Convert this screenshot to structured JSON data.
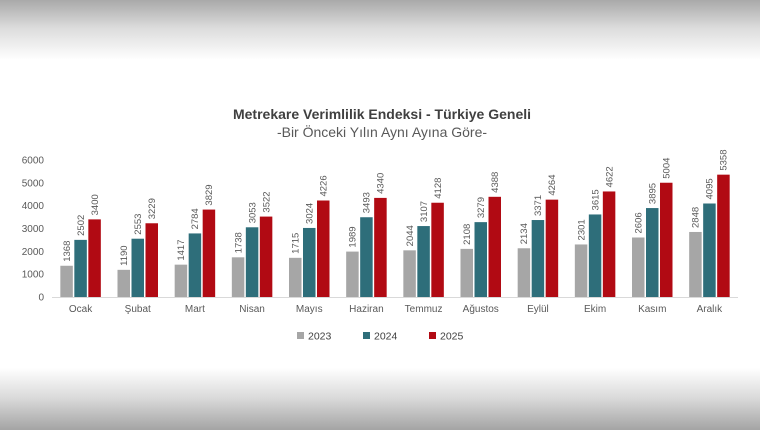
{
  "chart_data": {
    "type": "bar",
    "title": "Metrekare Verimlilik Endeksi - Türkiye Geneli",
    "subtitle": "-Bir Önceki Yılın Aynı Ayına Göre-",
    "categories": [
      "Ocak",
      "Şubat",
      "Mart",
      "Nisan",
      "Mayıs",
      "Haziran",
      "Temmuz",
      "Ağustos",
      "Eylül",
      "Ekim",
      "Kasım",
      "Aralık"
    ],
    "series": [
      {
        "name": "2023",
        "color": "#a6a6a6",
        "values": [
          1368,
          1190,
          1417,
          1738,
          1715,
          1989,
          2044,
          2108,
          2134,
          2301,
          2606,
          2848
        ]
      },
      {
        "name": "2024",
        "color": "#2e6e7a",
        "values": [
          2502,
          2553,
          2784,
          3053,
          3024,
          3493,
          3107,
          3279,
          3371,
          3615,
          3895,
          4095
        ]
      },
      {
        "name": "2025",
        "color": "#b10a13",
        "values": [
          3400,
          3229,
          3829,
          3522,
          4226,
          4340,
          4128,
          4388,
          4264,
          4622,
          5004,
          5358
        ]
      }
    ],
    "yticks": [
      "0",
      "1000",
      "2000",
      "3000",
      "4000",
      "5000",
      "6000"
    ],
    "ylim": [
      0,
      6000
    ],
    "grid": false,
    "legend_position": "bottom",
    "data_labels": "vertical, above bars"
  }
}
